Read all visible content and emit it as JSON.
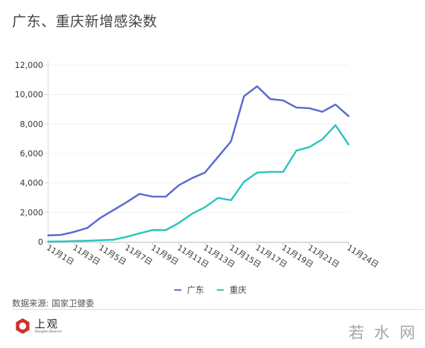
{
  "title": "广东、重庆新增感染数",
  "legend": [
    {
      "label": "广东",
      "color": "#5b6bcf"
    },
    {
      "label": "重庆",
      "color": "#2ec4bf"
    }
  ],
  "source": "数据来源: 国家卫健委",
  "logo": {
    "cn": "上观",
    "en": "Shanghai Observer",
    "color": "#d32f2f"
  },
  "watermark": "若水网",
  "chart_data": {
    "type": "line",
    "title": "广东、重庆新增感染数",
    "xlabel": "",
    "ylabel": "",
    "ylim": [
      0,
      12000
    ],
    "yticks": [
      "0",
      "2,000",
      "4,000",
      "6,000",
      "8,000",
      "10,000",
      "12,000"
    ],
    "x": [
      "11月1日",
      "11月2日",
      "11月3日",
      "11月4日",
      "11月5日",
      "11月6日",
      "11月7日",
      "11月8日",
      "11月9日",
      "11月10日",
      "11月11日",
      "11月12日",
      "11月13日",
      "11月14日",
      "11月15日",
      "11月16日",
      "11月17日",
      "11月18日",
      "11月19日",
      "11月20日",
      "11月21日",
      "11月22日",
      "11月23日",
      "11月24日"
    ],
    "xtick_labels": [
      "11月1日",
      "11月3日",
      "11月5日",
      "11月7日",
      "11月9日",
      "11月11日",
      "11月13日",
      "11月15日",
      "11月17日",
      "11月19日",
      "11月21日",
      "11月24日"
    ],
    "grid": true,
    "legend_position": "bottom",
    "series": [
      {
        "name": "广东",
        "color": "#5b6bcf",
        "values": [
          440,
          480,
          680,
          950,
          1630,
          2160,
          2690,
          3260,
          3070,
          3070,
          3840,
          4320,
          4700,
          5760,
          6820,
          9890,
          10560,
          9700,
          9600,
          9120,
          9070,
          8830,
          9320,
          8540
        ]
      },
      {
        "name": "重庆",
        "color": "#2ec4bf",
        "values": [
          20,
          30,
          60,
          80,
          110,
          150,
          340,
          580,
          800,
          800,
          1280,
          1900,
          2350,
          2980,
          2830,
          4080,
          4700,
          4750,
          4750,
          6190,
          6430,
          6960,
          7920,
          6620
        ]
      }
    ]
  }
}
